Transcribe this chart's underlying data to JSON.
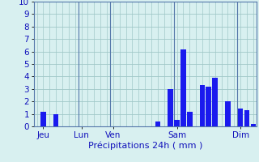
{
  "title": "",
  "xlabel": "Précipitations 24h ( mm )",
  "bg_color": "#d8f0f0",
  "bar_color": "#1a1aee",
  "grid_color": "#a0c8c8",
  "vline_color": "#5577aa",
  "ylim": [
    0,
    10
  ],
  "yticks": [
    0,
    1,
    2,
    3,
    4,
    5,
    6,
    7,
    8,
    9,
    10
  ],
  "bar_values": [
    0,
    1.2,
    0,
    1.0,
    0,
    0,
    0,
    0,
    0,
    0,
    0,
    0,
    0,
    0,
    0,
    0,
    0,
    0,
    0,
    0.4,
    0,
    3.0,
    0.5,
    6.2,
    1.2,
    0,
    3.3,
    3.2,
    3.9,
    0,
    2.0,
    0,
    1.4,
    1.3,
    0.2
  ],
  "day_labels": [
    "Jeu",
    "Lun",
    "Ven",
    "Sam",
    "Dim"
  ],
  "day_positions": [
    1,
    7,
    12,
    22,
    32
  ],
  "vertical_lines_before": [
    7,
    12,
    22,
    32
  ],
  "xlabel_color": "#1111bb",
  "tick_color": "#1111bb",
  "label_fontsize": 8,
  "tick_fontsize": 7.5
}
